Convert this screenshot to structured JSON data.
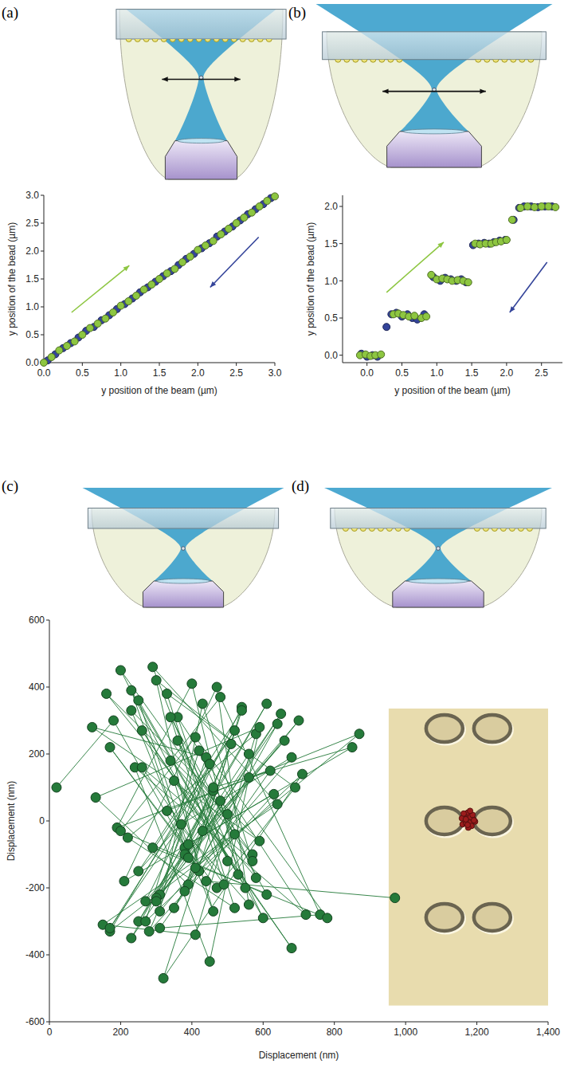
{
  "panel_labels": [
    "(a)",
    "(b)",
    "(c)",
    "(d)"
  ],
  "chart_data": [
    {
      "type": "scatter",
      "x_label": "y position of the beam (µm)",
      "y_label": "y position of the bead (µm)",
      "xlim": [
        0,
        3
      ],
      "ylim": [
        0,
        3
      ],
      "xticks": [
        {
          "value": 0,
          "label": "0.0"
        },
        0.5,
        {
          "value": 1,
          "label": "1.0"
        },
        1.5,
        {
          "value": 2,
          "label": "2.0"
        },
        2.5,
        {
          "value": 3,
          "label": "3.0"
        }
      ],
      "yticks": [
        {
          "value": 0,
          "label": "0.0"
        },
        0.5,
        {
          "value": 1,
          "label": "1.0"
        },
        1.5,
        {
          "value": 2,
          "label": "2.0"
        },
        2.5,
        {
          "value": 3,
          "label": "3.0"
        }
      ],
      "marker": "circle",
      "series": [
        {
          "color": "#34449a",
          "x": [
            0.05,
            0.15,
            0.25,
            0.35,
            0.45,
            0.55,
            0.65,
            0.75,
            0.85,
            0.95,
            1.05,
            1.15,
            1.25,
            1.35,
            1.45,
            1.55,
            1.65,
            1.75,
            1.85,
            1.95,
            2.05,
            2.15,
            2.25,
            2.35,
            2.45,
            2.55,
            2.65,
            2.75,
            2.85,
            2.95
          ],
          "values": [
            0.04,
            0.15,
            0.26,
            0.35,
            0.45,
            0.57,
            0.64,
            0.76,
            0.85,
            0.96,
            1.05,
            1.15,
            1.26,
            1.35,
            1.45,
            1.55,
            1.64,
            1.75,
            1.86,
            1.95,
            2.05,
            2.14,
            2.26,
            2.35,
            2.44,
            2.55,
            2.66,
            2.75,
            2.84,
            2.95
          ]
        },
        {
          "color": "#8dc641",
          "x": [
            0,
            0.1,
            0.2,
            0.3,
            0.4,
            0.5,
            0.6,
            0.7,
            0.8,
            0.9,
            1.0,
            1.1,
            1.2,
            1.3,
            1.4,
            1.5,
            1.6,
            1.7,
            1.8,
            1.9,
            2.0,
            2.1,
            2.2,
            2.3,
            2.4,
            2.5,
            2.6,
            2.7,
            2.8,
            2.9,
            3.0
          ],
          "values": [
            0,
            0.1,
            0.22,
            0.3,
            0.38,
            0.5,
            0.62,
            0.7,
            0.79,
            0.9,
            1.02,
            1.1,
            1.2,
            1.31,
            1.4,
            1.5,
            1.6,
            1.68,
            1.8,
            1.9,
            2.02,
            2.1,
            2.18,
            2.3,
            2.4,
            2.5,
            2.6,
            2.69,
            2.8,
            2.9,
            2.98
          ]
        }
      ]
    },
    {
      "type": "scatter",
      "x_label": "y position of the beam (µm)",
      "y_label": "y position of the bead (µm)",
      "xlim": [
        -0.35,
        2.8
      ],
      "ylim": [
        -0.1,
        2.15
      ],
      "xticks": [
        {
          "value": 0,
          "label": "0.0"
        },
        0.5,
        {
          "value": 1,
          "label": "1.0"
        },
        1.5,
        {
          "value": 2,
          "label": "2.0"
        },
        2.5
      ],
      "yticks": [
        {
          "value": 0,
          "label": "0.0"
        },
        0.5,
        {
          "value": 1,
          "label": "1.0"
        },
        1.5,
        {
          "value": 2,
          "label": "2.0"
        }
      ],
      "marker": "circle",
      "series": [
        {
          "color": "#34449a",
          "x": [
            -0.08,
            0,
            0.08,
            0.15,
            0.28,
            0.35,
            0.42,
            0.5,
            0.58,
            0.65,
            0.72,
            0.82,
            0.95,
            1.05,
            1.12,
            1.2,
            1.28,
            1.35,
            1.42,
            1.52,
            1.6,
            1.68,
            1.75,
            1.82,
            1.9,
            1.98,
            2.1,
            2.18,
            2.25,
            2.35,
            2.45,
            2.55,
            2.65
          ],
          "values": [
            0.02,
            -0.02,
            0,
            -0.02,
            0.38,
            0.55,
            0.57,
            0.52,
            0.55,
            0.5,
            0.48,
            0.55,
            1.05,
            1.0,
            1.04,
            1.02,
            1.0,
            1.02,
            0.98,
            1.48,
            1.5,
            1.51,
            1.5,
            1.52,
            1.54,
            1.55,
            1.82,
            1.98,
            2.0,
            2.0,
            1.99,
            2.0,
            2.0
          ]
        },
        {
          "color": "#8dc641",
          "x": [
            -0.1,
            -0.02,
            0.05,
            0.12,
            0.2,
            0.38,
            0.45,
            0.52,
            0.6,
            0.68,
            0.78,
            0.85,
            0.92,
            1.0,
            1.08,
            1.15,
            1.22,
            1.3,
            1.38,
            1.45,
            1.55,
            1.62,
            1.7,
            1.78,
            1.85,
            1.92,
            2.0,
            2.08,
            2.2,
            2.3,
            2.4,
            2.5,
            2.6,
            2.7
          ],
          "values": [
            0,
            0.01,
            -0.01,
            0,
            0.01,
            0.55,
            0.56,
            0.54,
            0.52,
            0.53,
            0.5,
            0.52,
            1.08,
            1.02,
            1.03,
            1.02,
            1.0,
            1.01,
            1.0,
            0.98,
            1.5,
            1.49,
            1.5,
            1.5,
            1.52,
            1.53,
            1.55,
            1.82,
            1.98,
            2.0,
            1.99,
            2.0,
            2.0,
            1.99
          ]
        }
      ]
    },
    {
      "type": "scatter",
      "x_label": "Displacement (nm)",
      "y_label": "Displacement (nm)",
      "xlim": [
        0,
        1400
      ],
      "ylim": [
        -600,
        600
      ],
      "xticks": [
        0,
        200,
        400,
        600,
        800,
        {
          "value": 1000,
          "label": "1,000"
        },
        {
          "value": 1200,
          "label": "1,200"
        },
        {
          "value": 1400,
          "label": "1,400"
        }
      ],
      "yticks": [
        -600,
        -400,
        -200,
        0,
        200,
        400,
        600
      ],
      "marker": "circle",
      "series": [
        {
          "color": "#257a3a",
          "line_style": "solid",
          "x": [
            20,
            180,
            420,
            300,
            560,
            250,
            610,
            380,
            170,
            470,
            690,
            330,
            520,
            220,
            580,
            410,
            150,
            640,
            290,
            500,
            360,
            720,
            240,
            450,
            590,
            130,
            390,
            540,
            270,
            660,
            430,
            200,
            570,
            340,
            480,
            760,
            310,
            620,
            190,
            400,
            530,
            260,
            680,
            350,
            460,
            230,
            590,
            120,
            440,
            310,
            700,
            380,
            510,
            280,
            630,
            210,
            470,
            560,
            330,
            870,
            410,
            250,
            600,
            360,
            520,
            170,
            450,
            300,
            650,
            390,
            230,
            550,
            480,
            320,
            710,
            270,
            420,
            580,
            160,
            500,
            350,
            640,
            230,
            460,
            380,
            540,
            290,
            780,
            410,
            200,
            610,
            340,
            490,
            260,
            570,
            430,
            310,
            680,
            370,
            170,
            520,
            250,
            460,
            850,
            390,
            300,
            560,
            440,
            970
          ],
          "values": [
            100,
            300,
            -150,
            420,
            200,
            -300,
            350,
            -80,
            220,
            -200,
            100,
            380,
            -260,
            -50,
            260,
            -340,
            -310,
            50,
            460,
            -120,
            310,
            -280,
            160,
            -420,
            280,
            70,
            -190,
            340,
            -240,
            240,
            -30,
            450,
            -100,
            180,
            370,
            -280,
            -320,
            150,
            -20,
            410,
            -160,
            270,
            -380,
            120,
            -270,
            330,
            -60,
            280,
            190,
            -220,
            300,
            -100,
            230,
            -330,
            80,
            -180,
            400,
            -250,
            30,
            260,
            -140,
            360,
            -290,
            240,
            -40,
            -330,
            170,
            -230,
            320,
            -110,
            390,
            -200,
            60,
            -470,
            140,
            -300,
            210,
            -170,
            380,
            20,
            -260,
            290,
            -350,
            90,
            -210,
            330,
            -80,
            -290,
            250,
            -30,
            -220,
            310,
            -190,
            160,
            -120,
            350,
            -270,
            190,
            -10,
            -320,
            270,
            -150,
            100,
            220,
            -70,
            -240,
            130,
            -180,
            -230
          ]
        },
        {
          "color": "#9c1c1c",
          "line_style": "solid",
          "x": [
            1165,
            1180,
            1172,
            1190,
            1160,
            1178,
            1185,
            1168,
            1175,
            1195,
            1158,
            1182,
            1170,
            1188,
            1176,
            1163,
            1192,
            1174,
            1181,
            1169
          ],
          "values": [
            10,
            -5,
            20,
            5,
            -10,
            15,
            -15,
            0,
            25,
            -2,
            8,
            12,
            -8,
            18,
            -20,
            22,
            2,
            -12,
            30,
            5
          ]
        }
      ]
    }
  ]
}
